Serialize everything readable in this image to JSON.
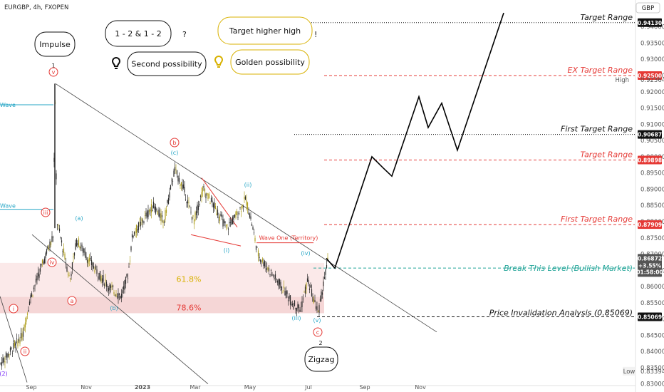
{
  "header": {
    "symbol": "EURGBP, 4h, FXOPEN",
    "currency": "GBP"
  },
  "colors": {
    "candle": "#2b2b2b",
    "wick_alt": "#b0a020",
    "red": "#e53935",
    "cyan": "#26a6c6",
    "purple": "#7b2ff7",
    "gold": "#d8b100",
    "green": "#26a69a",
    "zone": "#f5d6d6",
    "zone2": "#fbe9e9"
  },
  "y_axis": {
    "min": 0.8295,
    "max": 0.9463,
    "ticks": [
      "0.83000",
      "0.83500",
      "0.84000",
      "0.84500",
      "0.85000",
      "0.85500",
      "0.86000",
      "0.86500",
      "0.87000",
      "0.87500",
      "0.88000",
      "0.88500",
      "0.89000",
      "0.89500",
      "0.90000",
      "0.90500",
      "0.91000",
      "0.91500",
      "0.92000",
      "0.92500",
      "0.93000",
      "0.93500",
      "0.94000"
    ],
    "badges": [
      {
        "label": "0.94130",
        "value": 0.9413,
        "color": "#111111"
      },
      {
        "label": "0.92500",
        "value": 0.925,
        "color": "#e53935"
      },
      {
        "label": "0.90687",
        "value": 0.90687,
        "color": "#111111"
      },
      {
        "label": "0.89898",
        "value": 0.89898,
        "color": "#e53935"
      },
      {
        "label": "0.87909",
        "value": 0.87909,
        "color": "#e53935"
      },
      {
        "label": "0.86570",
        "value": 0.8657,
        "color": "#26a69a"
      },
      {
        "label": "0.85069",
        "value": 0.85069,
        "color": "#111111"
      }
    ],
    "current": {
      "price": "0.86872",
      "change": "+3.55%",
      "countdown": "01:58:00",
      "value": 0.86872
    },
    "high": {
      "label": "High",
      "price": "0.92364",
      "value": 0.92364
    },
    "low": {
      "label": "Low",
      "price": "0.83394",
      "value": 0.83394
    }
  },
  "x_axis": {
    "ticks": [
      "Sep",
      "Nov",
      "2023",
      "Mar",
      "May",
      "Jul",
      "Sep",
      "Nov"
    ]
  },
  "levels": [
    {
      "name": "Target Range",
      "value": 0.9413,
      "color": "#111111",
      "style": "dotted"
    },
    {
      "name": "EX Target Range",
      "value": 0.925,
      "color": "#e53935",
      "style": "dashed"
    },
    {
      "name": "First Target Range",
      "value": 0.90687,
      "color": "#111111",
      "style": "dotted"
    },
    {
      "name": "Target Range",
      "value": 0.89898,
      "color": "#e53935",
      "style": "dashed"
    },
    {
      "name": "First Target Range",
      "value": 0.87909,
      "color": "#e53935",
      "style": "dashed"
    },
    {
      "name": "Break This Level (Bullish Market)",
      "value": 0.8657,
      "color": "#26a69a",
      "style": "dashed"
    },
    {
      "name": "Price Invalidation Analysis (0.85069)",
      "value": 0.85069,
      "color": "#111111",
      "style": "dashed"
    }
  ],
  "fib": [
    {
      "label": "61.8%"
    },
    {
      "label": "78.6%"
    }
  ],
  "notes": {
    "impulse": "Impulse",
    "zigzag": "Zigzag",
    "pattern": "1 - 2 & 1 - 2",
    "question": "?",
    "second": "Second possibility",
    "golden": "Golden possibility",
    "target_hh": "Target higher high",
    "exclaim": "!",
    "wave_one_territory": "Wave One (Territory)"
  },
  "wave_labels": {
    "one": "1",
    "v": "v",
    "iii": "iii",
    "iv": "iv",
    "i": "i",
    "ii": "ii",
    "a": "a",
    "b": "b",
    "c": "c",
    "two": "2",
    "wave_a_cyan": "(a)",
    "wave_b_cyan": "(b)",
    "wave_c_cyan": "(c)",
    "wave_i_cyan": "(i)",
    "wave_ii_cyan": "(ii)",
    "wave_iii_cyan": "(iii)",
    "wave_iv_cyan": "(iv)",
    "wave_v_cyan": "(v)",
    "wave_2_purple": "(2)",
    "wave_left1": "Wave",
    "wave_left2": "Wave"
  },
  "chart_data": {
    "type": "candlestick",
    "title": "EURGBP, 4h, FXOPEN",
    "xlabel": "",
    "ylabel": "",
    "ylim": [
      0.8295,
      0.9463
    ],
    "x_ticks": [
      "Sep",
      "Nov",
      "2023",
      "Mar",
      "May",
      "Jul",
      "Sep",
      "Nov"
    ],
    "series": [
      {
        "name": "EURGBP",
        "approx_close_path": [
          [
            "2022-Aug",
            0.833
          ],
          [
            "2022-Aug",
            0.843
          ],
          [
            "2022-Sep",
            0.861
          ],
          [
            "2022-Sep",
            0.87
          ],
          [
            "2022-Sep",
            0.924
          ],
          [
            "2022-Oct",
            0.872
          ],
          [
            "2022-Oct",
            0.862
          ],
          [
            "2022-Nov",
            0.873
          ],
          [
            "2022-Nov",
            0.857
          ],
          [
            "2022-Dec",
            0.869
          ],
          [
            "2023-Jan",
            0.88
          ],
          [
            "2023-Feb",
            0.896
          ],
          [
            "2023-Mar",
            0.88
          ],
          [
            "2023-Apr",
            0.878
          ],
          [
            "2023-May",
            0.886
          ],
          [
            "2023-May",
            0.868
          ],
          [
            "2023-Jun",
            0.857
          ],
          [
            "2023-Jul",
            0.853
          ],
          [
            "2023-Jul",
            0.862
          ],
          [
            "2023-Aug",
            0.8687
          ]
        ]
      }
    ],
    "projection": [
      [
        "2023-Aug",
        0.8657
      ],
      [
        "2023-Sep",
        0.9
      ],
      [
        "2023-Sep",
        0.897
      ],
      [
        "2023-Oct",
        0.918
      ],
      [
        "2023-Oct",
        0.909
      ],
      [
        "2023-Nov",
        0.916
      ],
      [
        "2023-Dec",
        0.905
      ],
      [
        "2024-Jan",
        0.944
      ]
    ],
    "annotations": [
      "Target Range",
      "EX Target Range",
      "First Target Range",
      "Target Range",
      "First Target Range",
      "Break This Level (Bullish Market)",
      "Price Invalidation Analysis (0.85069)"
    ]
  }
}
